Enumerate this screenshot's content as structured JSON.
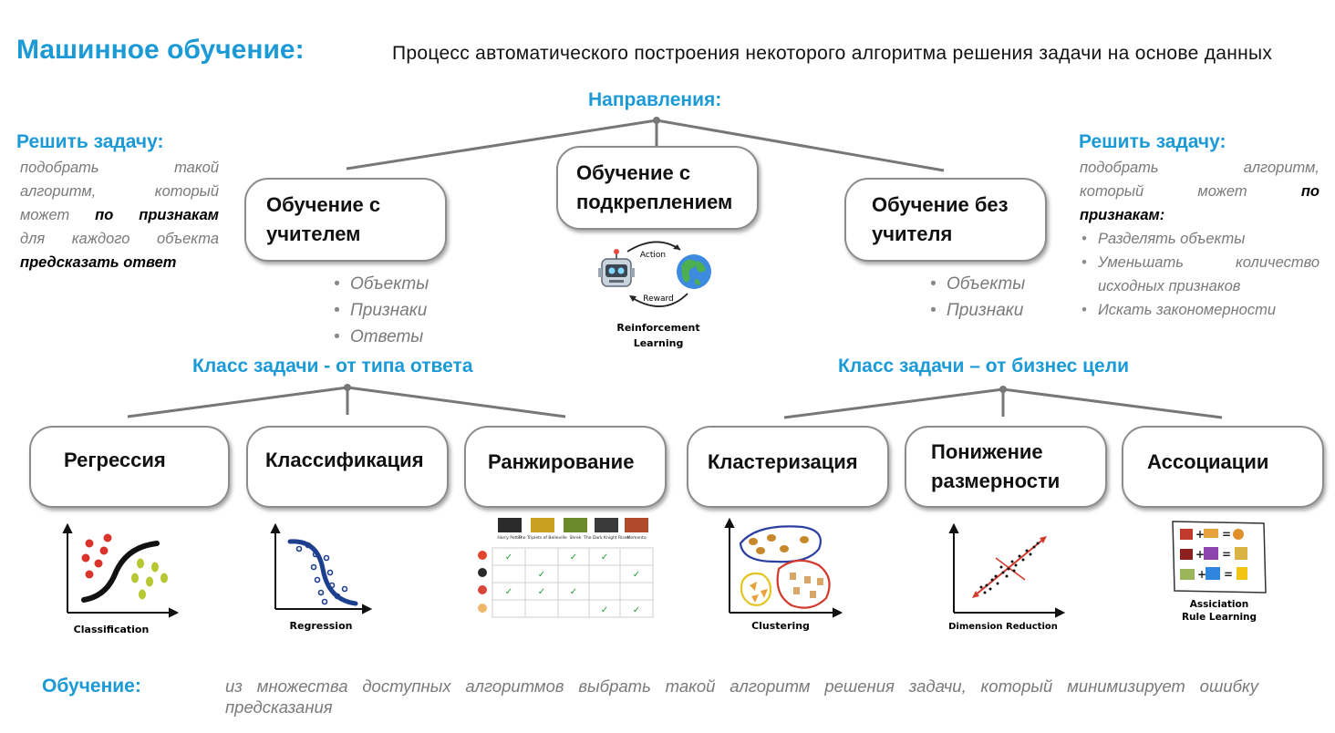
{
  "header": {
    "title": "Машинное обучение:",
    "definition": "Процесс автоматического построения некоторого алгоритма решения задачи на основе данных"
  },
  "directions_label": "Направления:",
  "left_panel": {
    "heading": "Решить задачу:",
    "line1": "подобрать такой",
    "line2": "алгоритм, который",
    "line3_pre": "может ",
    "line3_bold": "по признакам",
    "line4": "для каждого объекта",
    "line5_bold": "предсказать ответ"
  },
  "right_panel": {
    "heading": "Решить задачу:",
    "line1": "подобрать алгоритм,",
    "line2_pre": "который может ",
    "line2_bold": "по",
    "line3_bold": "признакам:",
    "bullets": [
      "Разделять объекты",
      "Уменьшать количество исходных признаков",
      "Искать закономерности"
    ]
  },
  "directions": {
    "supervised": {
      "line1": "Обучение с",
      "line2": "учителем",
      "bullets": [
        "Объекты",
        "Признаки",
        "Ответы"
      ]
    },
    "reinforcement": {
      "line1": "Обучение с",
      "line2": "подкреплением",
      "caption1": "Reinforcement",
      "caption2": "Learning",
      "action": "Action",
      "reward": "Reward"
    },
    "unsupervised": {
      "line1": "Обучение без",
      "line2": "учителя",
      "bullets": [
        "Объекты",
        "Признаки"
      ]
    }
  },
  "task_class_left": "Класс задачи - от типа ответа",
  "task_class_right": "Класс задачи – от бизнес цели",
  "tasks": {
    "regression": "Регрессия",
    "classification": "Классификация",
    "ranking": "Ранжирование",
    "clustering": "Кластеризация",
    "dim_reduction_1": "Понижение",
    "dim_reduction_2": "размерности",
    "association": "Ассоциации"
  },
  "thumbnails": {
    "t1": "Classification",
    "t2": "Regression",
    "movies": [
      "Harry Potter",
      "The Triplets of Belleville",
      "Shrek",
      "The Dark Knight Rises",
      "Memento"
    ],
    "t4": "Clustering",
    "t5": "Dimension Reduction",
    "t6a": "Assiciation",
    "t6b": "Rule Learning"
  },
  "footer": {
    "label": "Обучение:",
    "text": "из множества доступных алгоритмов выбрать такой алгоритм решения задачи, который минимизирует ошибку предсказания"
  },
  "colors": {
    "accent": "#1b9ad6",
    "muted": "#7a7a7a",
    "border": "#8c8c8c",
    "check": "#1f9b2e"
  }
}
